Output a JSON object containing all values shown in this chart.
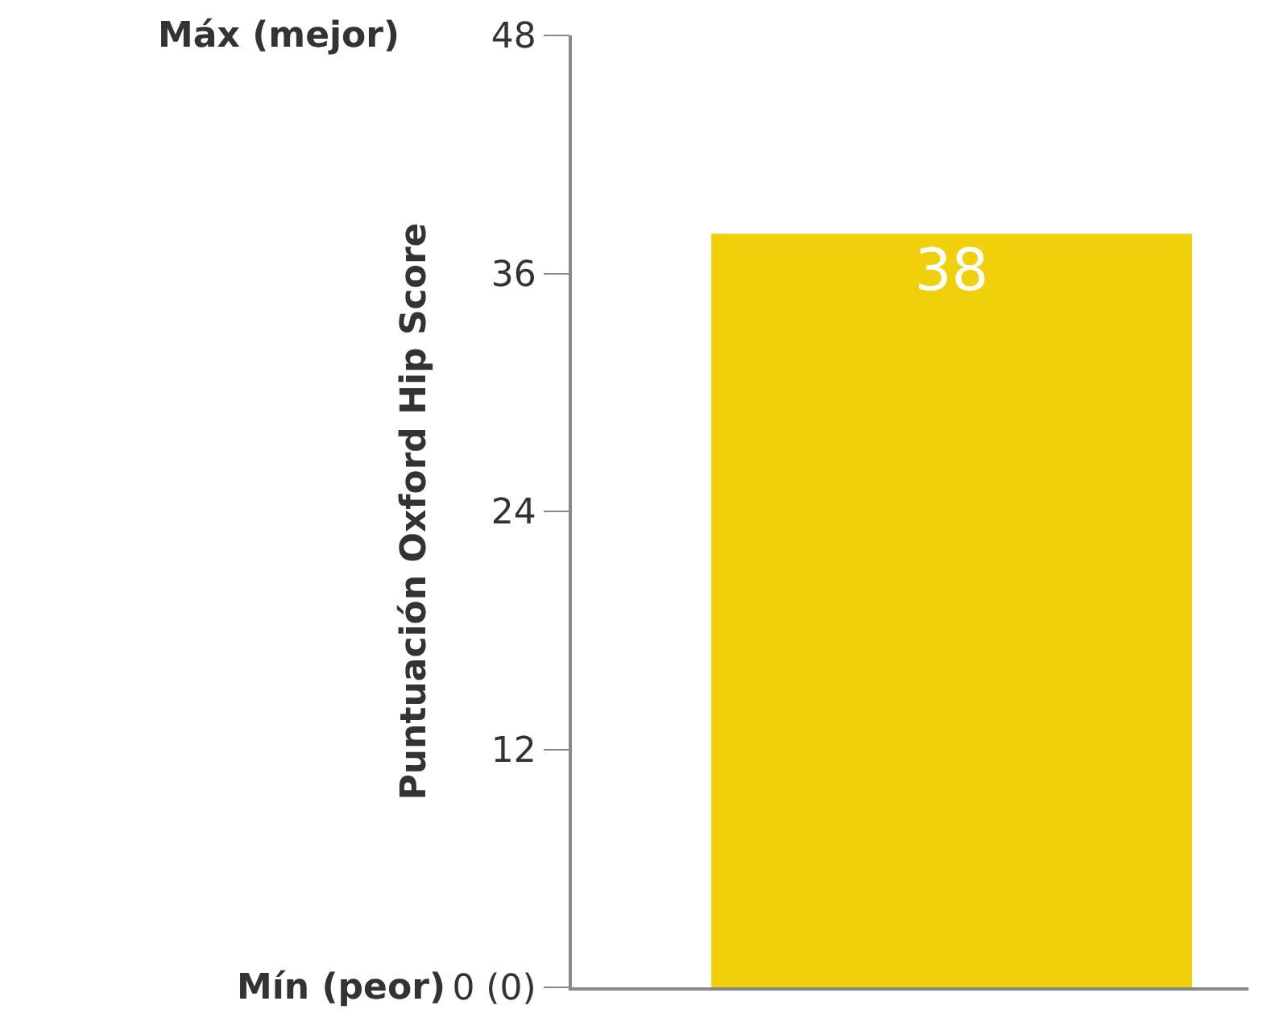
{
  "chart_data": {
    "type": "bar",
    "ylabel": "Puntuación Oxford Hip Score",
    "categories": [
      null
    ],
    "values": [
      38
    ],
    "color": "#f0d00a",
    "data_labels": true,
    "ylim": [
      0,
      48
    ],
    "yticks": [
      {
        "value": 0,
        "label": "0 (0)"
      },
      12,
      24,
      36,
      48
    ],
    "annotations": [
      "Máx (mejor)",
      "Mín (peor)"
    ],
    "grid": false,
    "tick_labels": "y"
  }
}
